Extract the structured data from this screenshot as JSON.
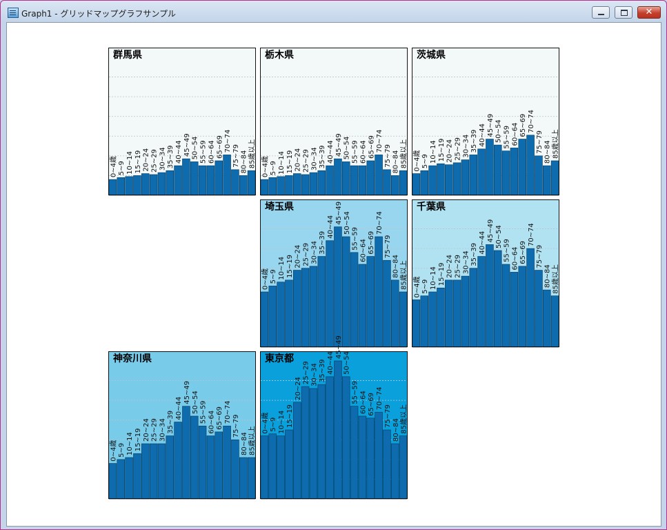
{
  "window": {
    "title": "Graph1 - グリッドマップグラフサンプル",
    "app_icon": "chart-window-icon",
    "buttons": {
      "minimize": "minimize-icon",
      "maximize": "maximize-icon",
      "close": "close-icon"
    }
  },
  "chart_data": [
    {
      "type": "bar",
      "title": "群馬県",
      "ylim": [
        0,
        700000
      ],
      "grid": true,
      "background": "#f3f8f8",
      "categories": [
        "0~4歳",
        "5~9",
        "10~14",
        "15~19",
        "20~24",
        "25~29",
        "30~34",
        "35~39",
        "40~44",
        "45~49",
        "50~54",
        "55~59",
        "60~64",
        "65~69",
        "70~74",
        "75~79",
        "80~84",
        "85歳以上"
      ],
      "values": [
        80000,
        90000,
        95000,
        100000,
        110000,
        105000,
        115000,
        125000,
        150000,
        185000,
        170000,
        150000,
        150000,
        175000,
        205000,
        130000,
        100000,
        125000
      ]
    },
    {
      "type": "bar",
      "title": "栃木県",
      "ylim": [
        0,
        700000
      ],
      "grid": true,
      "background": "#f3f8f8",
      "categories": [
        "0~4歳",
        "5~9",
        "10~14",
        "15~19",
        "20~24",
        "25~29",
        "30~34",
        "35~39",
        "40~44",
        "45~49",
        "50~54",
        "55~59",
        "60~64",
        "65~69",
        "70~74",
        "75~79",
        "80~84",
        "85歳以上"
      ],
      "values": [
        80000,
        90000,
        95000,
        100000,
        110000,
        105000,
        115000,
        125000,
        150000,
        185000,
        170000,
        150000,
        150000,
        175000,
        205000,
        130000,
        100000,
        125000
      ]
    },
    {
      "type": "bar",
      "title": "茨城県",
      "ylim": [
        0,
        700000
      ],
      "grid": true,
      "background": "#f3f8f8",
      "categories": [
        "0~4歳",
        "5~9",
        "10~14",
        "15~19",
        "20~24",
        "25~29",
        "30~34",
        "35~39",
        "40~44",
        "45~49",
        "50~54",
        "55~59",
        "60~64",
        "65~69",
        "70~74",
        "75~79",
        "80~84",
        "85歳以上"
      ],
      "values": [
        110000,
        125000,
        150000,
        160000,
        155000,
        165000,
        180000,
        205000,
        235000,
        285000,
        255000,
        225000,
        240000,
        285000,
        305000,
        200000,
        150000,
        175000
      ]
    },
    {
      "type": "bar",
      "title": "埼玉県",
      "ylim": [
        0,
        700000
      ],
      "grid": true,
      "background": "#97d6ee",
      "categories": [
        "0~4歳",
        "5~9",
        "10~14",
        "15~19",
        "20~24",
        "25~29",
        "30~34",
        "35~39",
        "40~44",
        "45~49",
        "50~54",
        "55~59",
        "60~64",
        "65~69",
        "70~74",
        "75~79",
        "80~84",
        "85歳以上"
      ],
      "values": [
        280000,
        310000,
        330000,
        340000,
        390000,
        400000,
        410000,
        460000,
        540000,
        610000,
        560000,
        480000,
        420000,
        460000,
        560000,
        440000,
        340000,
        280000
      ]
    },
    {
      "type": "bar",
      "title": "千葉県",
      "ylim": [
        0,
        700000
      ],
      "grid": true,
      "background": "#b1e2f2",
      "categories": [
        "0~4歳",
        "5~9",
        "10~14",
        "15~19",
        "20~24",
        "25~29",
        "30~34",
        "35~39",
        "40~44",
        "45~49",
        "50~54",
        "55~59",
        "60~64",
        "65~69",
        "70~74",
        "75~79",
        "80~84",
        "85歳以上"
      ],
      "values": [
        240000,
        260000,
        280000,
        300000,
        340000,
        340000,
        360000,
        400000,
        460000,
        520000,
        490000,
        420000,
        380000,
        410000,
        500000,
        390000,
        290000,
        260000
      ]
    },
    {
      "type": "bar",
      "title": "神奈川県",
      "ylim": [
        0,
        700000
      ],
      "grid": true,
      "background": "#79cbea",
      "categories": [
        "0~4歳",
        "5~9",
        "10~14",
        "15~19",
        "20~24",
        "25~29",
        "30~34",
        "35~39",
        "40~44",
        "45~49",
        "50~54",
        "55~59",
        "60~64",
        "65~69",
        "70~74",
        "75~79",
        "80~84",
        "85歳以上"
      ],
      "values": [
        180000,
        200000,
        210000,
        230000,
        280000,
        280000,
        280000,
        320000,
        390000,
        470000,
        420000,
        370000,
        320000,
        340000,
        370000,
        300000,
        210000,
        210000
      ]
    },
    {
      "type": "bar",
      "title": "東京都",
      "ylim": [
        0,
        700000
      ],
      "grid": true,
      "background": "#09a0dc",
      "categories": [
        "0~4歳",
        "5~9",
        "10~14",
        "15~19",
        "20~24",
        "25~29",
        "30~34",
        "35~39",
        "40~44",
        "45~49",
        "50~54",
        "55~59",
        "60~64",
        "65~69",
        "70~74",
        "75~79",
        "80~84",
        "85歳以上"
      ],
      "values": [
        320000,
        330000,
        320000,
        350000,
        490000,
        570000,
        560000,
        580000,
        620000,
        700000,
        620000,
        470000,
        420000,
        410000,
        440000,
        350000,
        280000,
        320000
      ]
    }
  ]
}
